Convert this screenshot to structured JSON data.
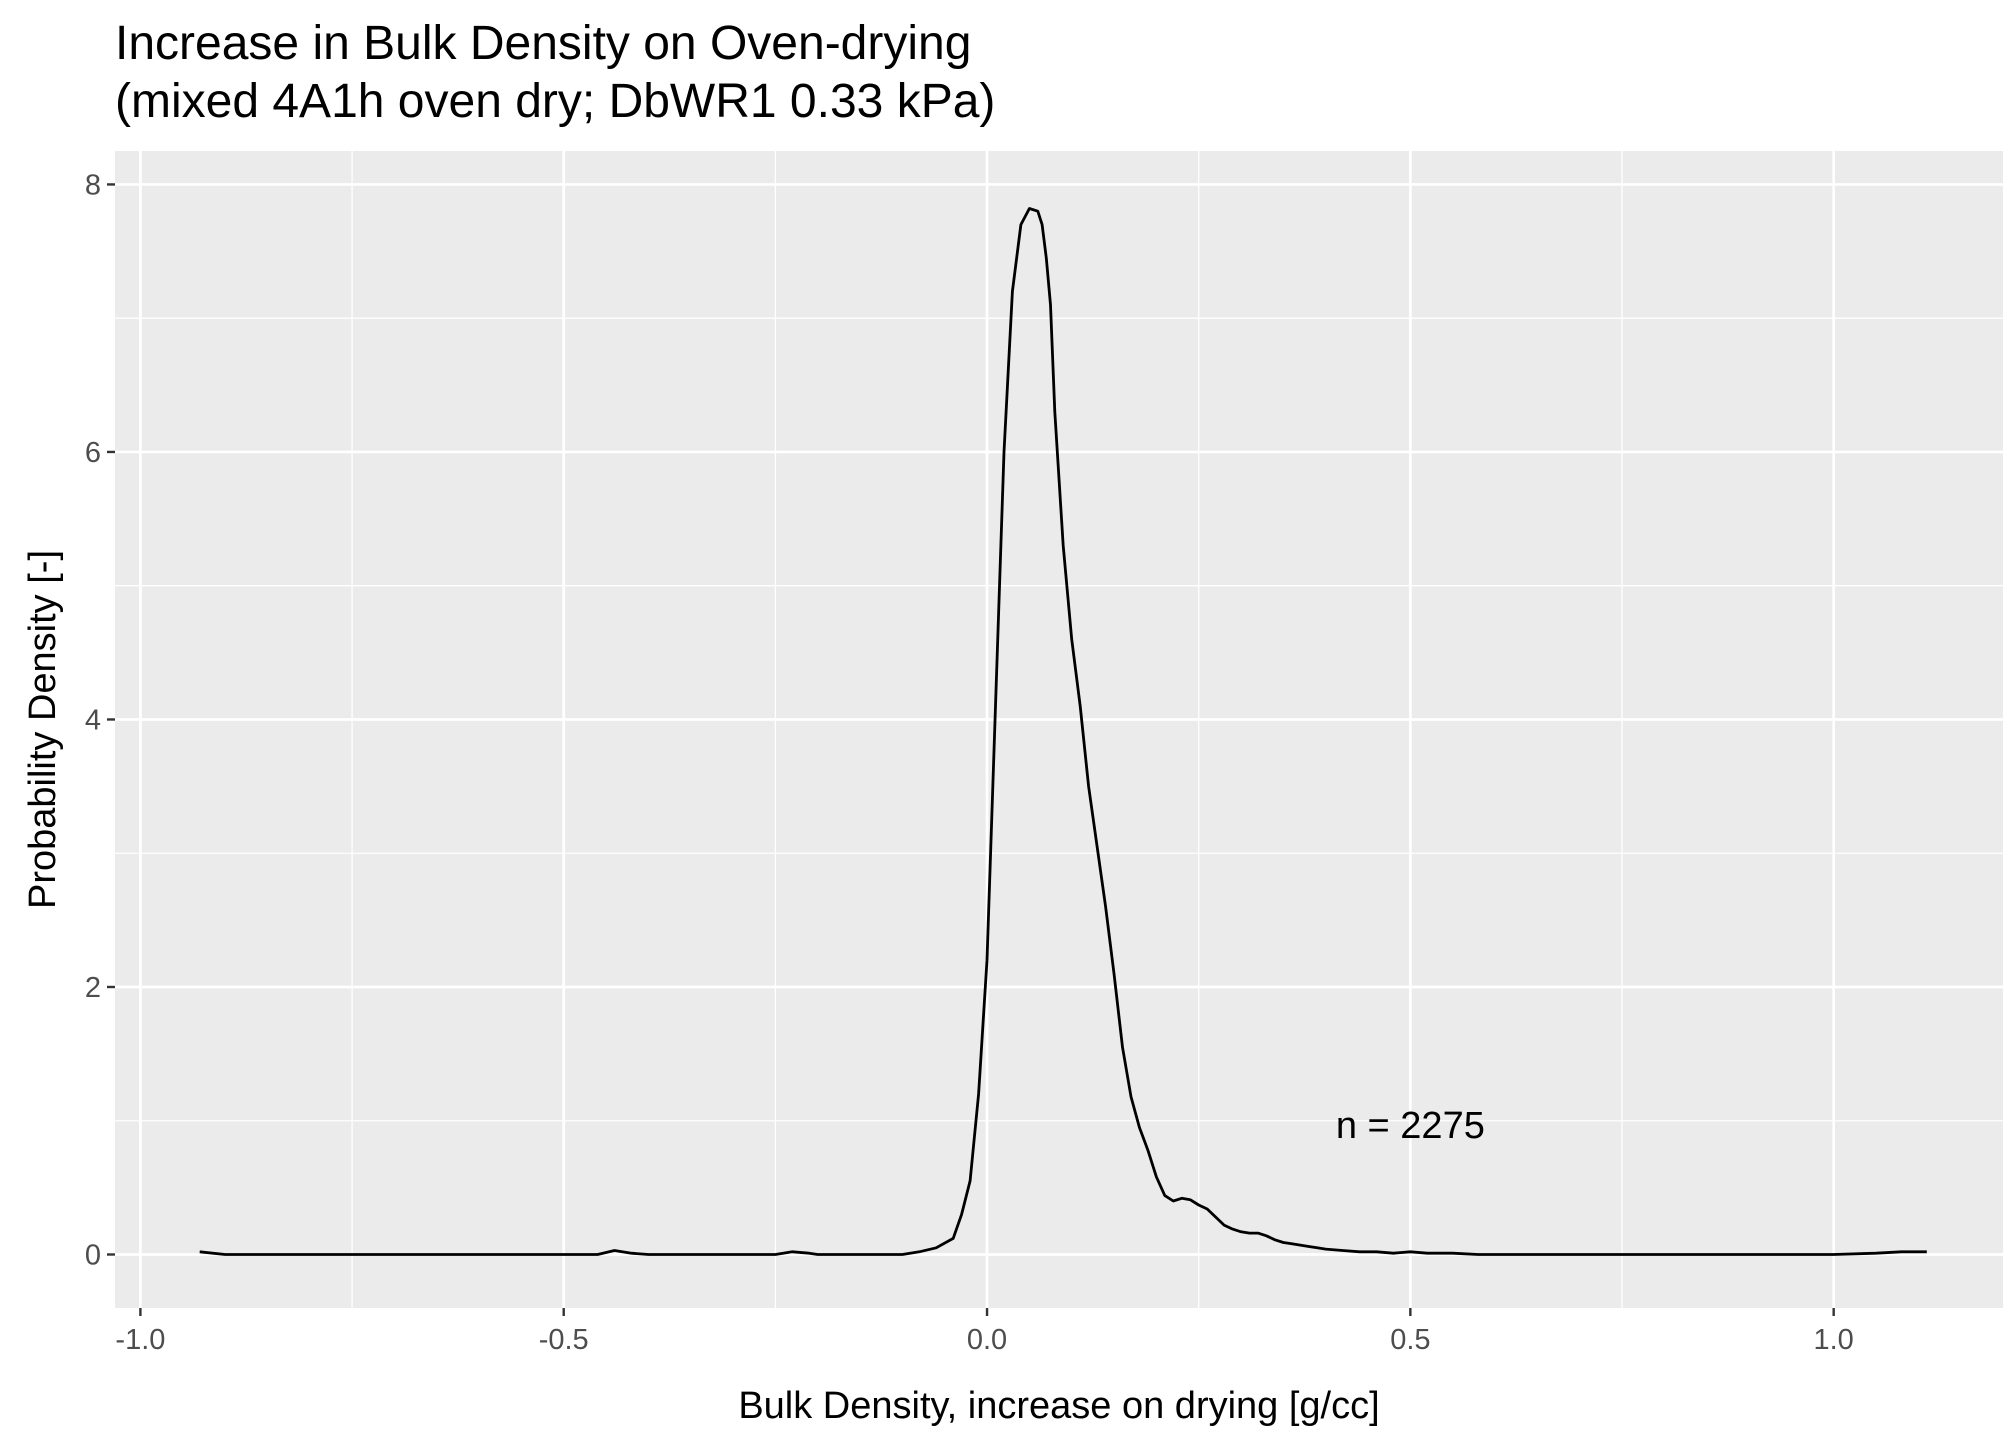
{
  "title": {
    "line1": "Increase in Bulk Density on Oven-drying",
    "line2": "(mixed 4A1h oven dry; DbWR1 0.33 kPa)"
  },
  "chart_data": {
    "type": "line",
    "title": "Increase in Bulk Density on Oven-drying",
    "subtitle": "(mixed 4A1h oven dry; DbWR1 0.33 kPa)",
    "xlabel": "Bulk Density, increase on drying [g/cc]",
    "ylabel": "Probability Density [-]",
    "xlim": [
      -1.03,
      1.2
    ],
    "ylim": [
      -0.4,
      8.25
    ],
    "x_ticks": [
      -1.0,
      -0.5,
      0.0,
      0.5,
      1.0
    ],
    "x_tick_labels": [
      "-1.0",
      "-0.5",
      "0.0",
      "0.5",
      "1.0"
    ],
    "y_ticks": [
      0,
      2,
      4,
      6,
      8
    ],
    "y_tick_labels": [
      "0",
      "2",
      "4",
      "6",
      "8"
    ],
    "grid": true,
    "background": "#ebebeb",
    "grid_color": "#ffffff",
    "line_color": "#000000",
    "annotation": {
      "text": "n = 2275",
      "x": 0.5,
      "y": 0.97
    },
    "series": [
      {
        "x": [
          -0.93,
          -0.9,
          -0.85,
          -0.8,
          -0.7,
          -0.6,
          -0.5,
          -0.46,
          -0.44,
          -0.42,
          -0.4,
          -0.3,
          -0.25,
          -0.23,
          -0.21,
          -0.2,
          -0.1,
          -0.08,
          -0.06,
          -0.04,
          -0.03,
          -0.02,
          -0.01,
          0.0,
          0.01,
          0.02,
          0.03,
          0.04,
          0.05,
          0.06,
          0.065,
          0.07,
          0.075,
          0.08,
          0.09,
          0.1,
          0.11,
          0.12,
          0.13,
          0.14,
          0.15,
          0.16,
          0.17,
          0.18,
          0.19,
          0.2,
          0.21,
          0.22,
          0.23,
          0.24,
          0.25,
          0.26,
          0.27,
          0.28,
          0.29,
          0.3,
          0.31,
          0.32,
          0.33,
          0.34,
          0.35,
          0.36,
          0.37,
          0.38,
          0.39,
          0.4,
          0.42,
          0.44,
          0.46,
          0.48,
          0.5,
          0.52,
          0.55,
          0.58,
          0.6,
          0.7,
          0.8,
          0.9,
          1.0,
          1.05,
          1.08,
          1.1,
          1.11
        ],
        "y": [
          0.02,
          0.0,
          0.0,
          0.0,
          0.0,
          0.0,
          0.0,
          0.0,
          0.03,
          0.01,
          0.0,
          0.0,
          0.0,
          0.02,
          0.01,
          0.0,
          0.0,
          0.02,
          0.05,
          0.12,
          0.3,
          0.55,
          1.2,
          2.2,
          4.1,
          6.0,
          7.2,
          7.7,
          7.82,
          7.8,
          7.7,
          7.45,
          7.1,
          6.3,
          5.3,
          4.6,
          4.1,
          3.5,
          3.05,
          2.6,
          2.1,
          1.55,
          1.18,
          0.95,
          0.78,
          0.58,
          0.44,
          0.4,
          0.42,
          0.41,
          0.37,
          0.34,
          0.28,
          0.22,
          0.19,
          0.17,
          0.16,
          0.16,
          0.14,
          0.11,
          0.09,
          0.08,
          0.07,
          0.06,
          0.05,
          0.04,
          0.03,
          0.02,
          0.02,
          0.01,
          0.02,
          0.01,
          0.01,
          0.0,
          0.0,
          0.0,
          0.0,
          0.0,
          0.0,
          0.01,
          0.02,
          0.02,
          0.02
        ]
      }
    ]
  }
}
